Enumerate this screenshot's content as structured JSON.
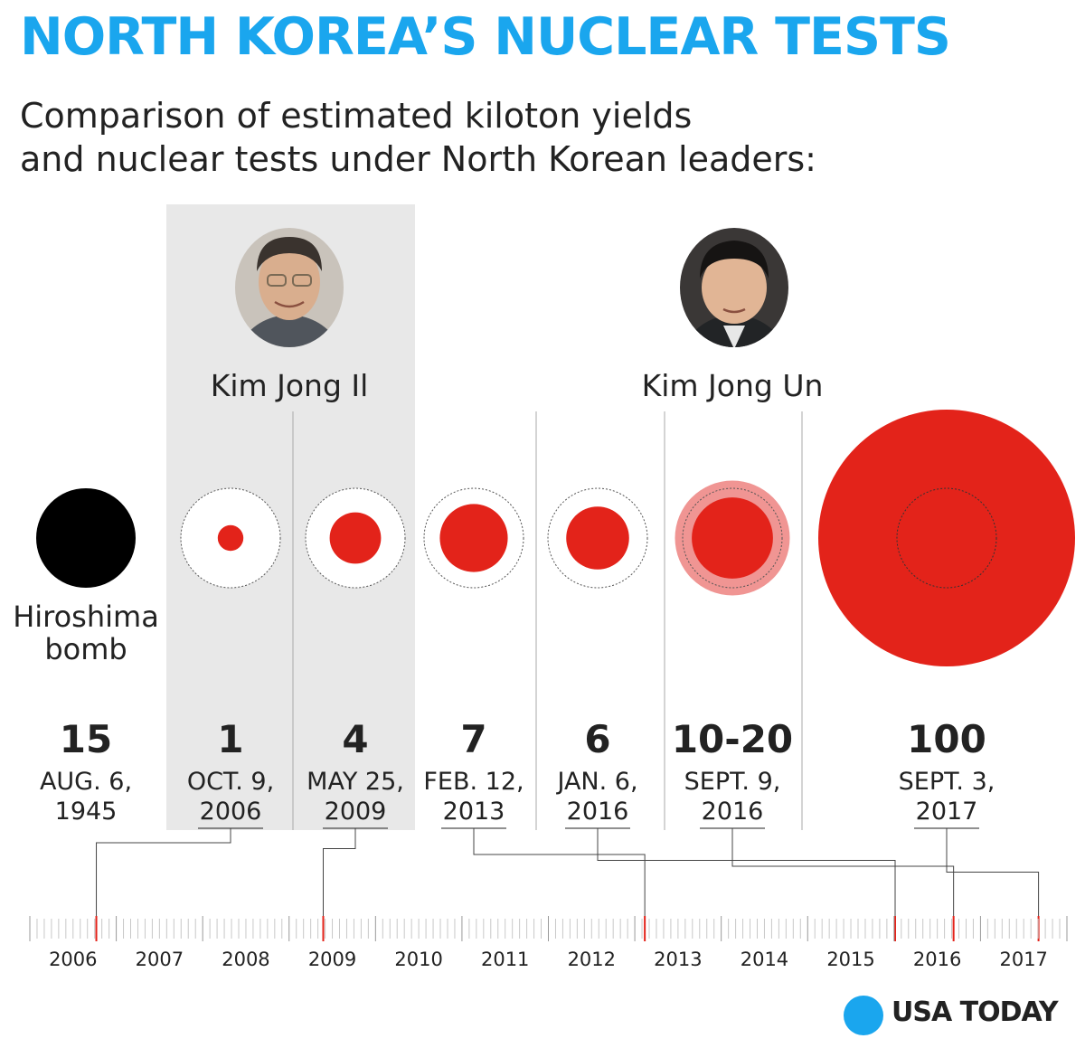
{
  "title": "NORTH KOREA’S NUCLEAR TESTS",
  "subtitle": [
    "Comparison of estimated kiloton yields",
    "and nuclear tests under North Korean leaders:"
  ],
  "brand": "USA TODAY",
  "colors": {
    "title": "#1aa6ee",
    "test": "#e3231a",
    "test_range": "#f09593",
    "hiroshima": "#000000",
    "kim_jong_il_band": "#e8e8e8"
  },
  "leaders": [
    {
      "name": "Kim Jong Il",
      "portrait_icon": "kim-jong-il-portrait-icon"
    },
    {
      "name": "Kim Jong Un",
      "portrait_icon": "kim-jong-un-portrait-icon"
    }
  ],
  "chart_data": {
    "type": "bubble",
    "value_unit": "kiloton",
    "reference": {
      "label": [
        "Hiroshima",
        "bomb"
      ],
      "value_label": "15",
      "value": 15,
      "date_lines": [
        "AUG. 6,",
        "1945"
      ]
    },
    "tests": [
      {
        "value_label": "1",
        "value": 1,
        "date_lines": [
          "OCT. 9,",
          "2006"
        ],
        "date": "2006-10-09",
        "leader": "Kim Jong Il"
      },
      {
        "value_label": "4",
        "value": 4,
        "date_lines": [
          "MAY 25,",
          "2009"
        ],
        "date": "2009-05-25",
        "leader": "Kim Jong Il"
      },
      {
        "value_label": "7",
        "value": 7,
        "date_lines": [
          "FEB. 12,",
          "2013"
        ],
        "date": "2013-02-12",
        "leader": "Kim Jong Un"
      },
      {
        "value_label": "6",
        "value": 6,
        "date_lines": [
          "JAN. 6,",
          "2016"
        ],
        "date": "2016-01-06",
        "leader": "Kim Jong Un"
      },
      {
        "value_label": "10-20",
        "value": 10,
        "value_max": 20,
        "date_lines": [
          "SEPT. 9,",
          "2016"
        ],
        "date": "2016-09-09",
        "leader": "Kim Jong Un"
      },
      {
        "value_label": "100",
        "value": 100,
        "date_lines": [
          "SEPT. 3,",
          "2017"
        ],
        "date": "2017-09-03",
        "leader": "Kim Jong Un"
      }
    ],
    "timeline_years": [
      "2006",
      "2007",
      "2008",
      "2009",
      "2010",
      "2011",
      "2012",
      "2013",
      "2014",
      "2015",
      "2016",
      "2017"
    ]
  }
}
